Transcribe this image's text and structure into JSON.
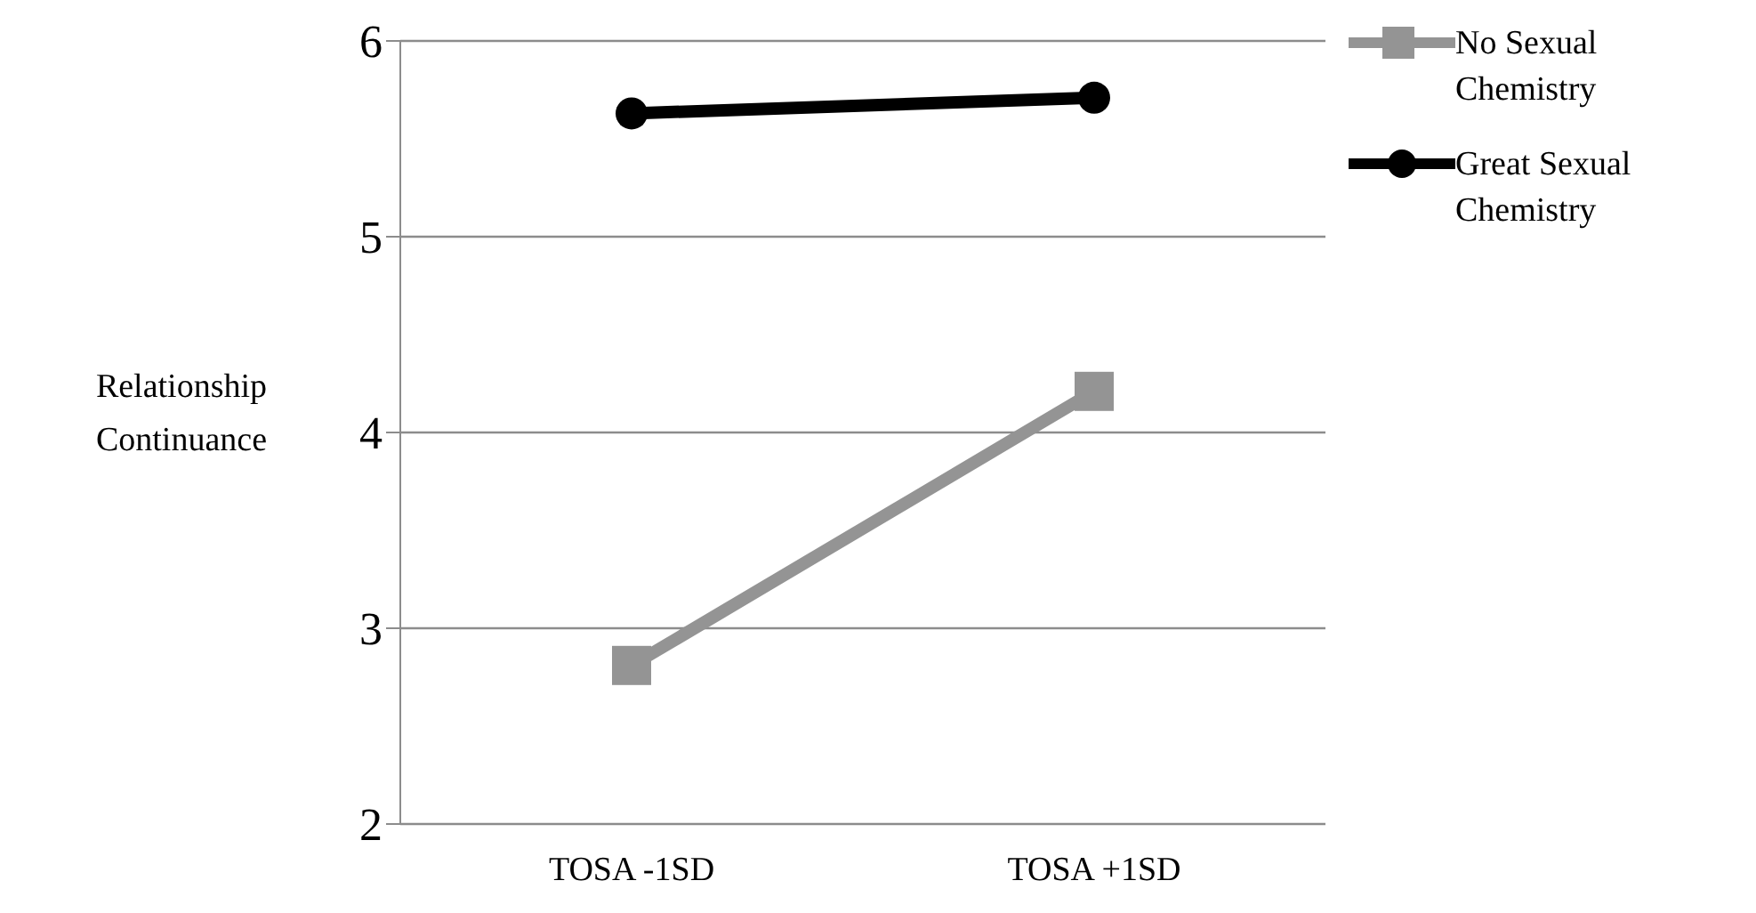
{
  "chart_data": {
    "type": "line",
    "categories": [
      "TOSA -1SD",
      "TOSA +1SD"
    ],
    "ylabel": "Relationship Continuance",
    "ylim": [
      2,
      6
    ],
    "yticks": [
      2,
      3,
      4,
      5,
      6
    ],
    "grid": "y",
    "legend": "top right",
    "series": [
      {
        "name": "No Sexual Chemistry",
        "color": "#949494",
        "values": [
          2.81,
          4.21
        ],
        "marker": "square"
      },
      {
        "name": "Great Sexual Chemistry",
        "color": "#000000",
        "values": [
          5.63,
          5.71
        ],
        "marker": "circle"
      }
    ]
  }
}
